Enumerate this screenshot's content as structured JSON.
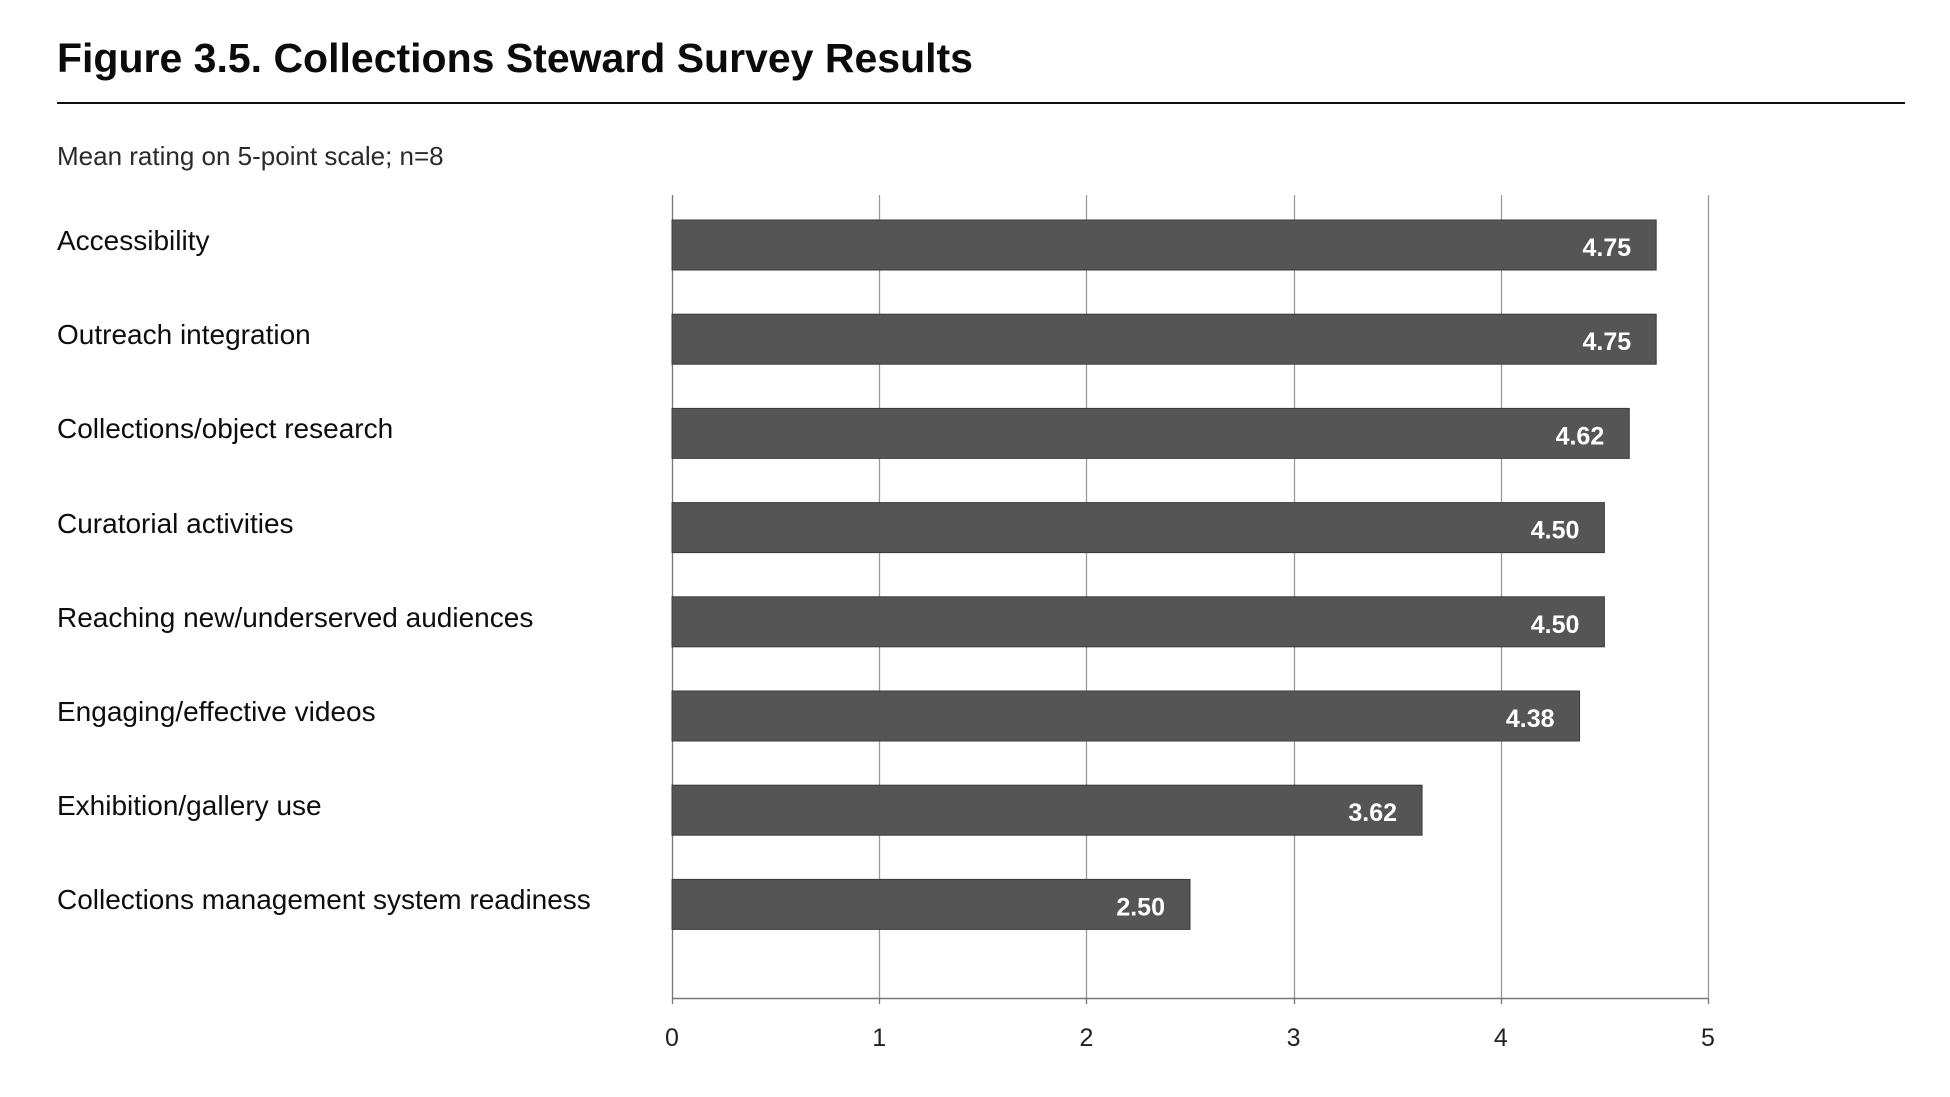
{
  "chart_data": {
    "type": "bar",
    "orientation": "horizontal",
    "title": "Figure 3.5. Collections Steward Survey Results",
    "subtitle": "Mean rating on 5-point scale; n=8",
    "categories": [
      "Accessibility",
      "Outreach integration",
      "Collections/object research",
      "Curatorial activities",
      "Reaching new/underserved audiences",
      "Engaging/effective videos",
      "Exhibition/gallery use",
      "Collections management system readiness"
    ],
    "values": [
      4.75,
      4.75,
      4.62,
      4.5,
      4.5,
      4.38,
      3.62,
      2.5
    ],
    "value_labels": [
      "4.75",
      "4.75",
      "4.62",
      "4.50",
      "4.50",
      "4.38",
      "3.62",
      "2.50"
    ],
    "xlim": [
      0,
      5
    ],
    "xticks": [
      "0",
      "1",
      "2",
      "3",
      "4",
      "5"
    ],
    "xlabel": "",
    "ylabel": "",
    "grid": "vertical",
    "legend": "none",
    "colors": {
      "bar": "#555555",
      "bar_label": "#ffffff",
      "grid": "#999999",
      "axis": "#777777"
    }
  }
}
